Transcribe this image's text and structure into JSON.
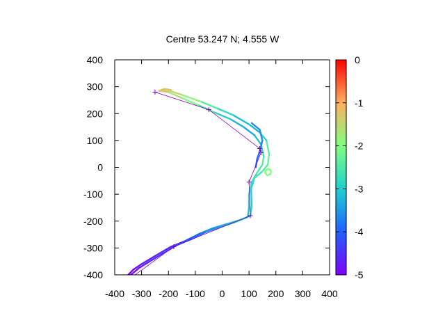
{
  "chart_data": {
    "type": "line",
    "title": "Centre 53.247 N; 4.555  W",
    "xlabel": "",
    "ylabel": "",
    "xlim": [
      -400,
      400
    ],
    "ylim": [
      -400,
      400
    ],
    "x_ticks": [
      -400,
      -300,
      -200,
      -100,
      0,
      100,
      200,
      300,
      400
    ],
    "y_ticks": [
      -400,
      -300,
      -200,
      -100,
      0,
      100,
      200,
      300,
      400
    ],
    "grid": false,
    "colorbar": {
      "range": [
        -5,
        0
      ],
      "ticks": [
        0,
        -1,
        -2,
        -3,
        -4,
        -5
      ],
      "palette": "rainbow"
    },
    "series": [
      {
        "values_note": "",
        "type": "track-outer",
        "points": [
          [
            -355,
            -405,
            -5.0
          ],
          [
            -330,
            -380,
            -4.9
          ],
          [
            -300,
            -360,
            -4.8
          ],
          [
            -250,
            -330,
            -4.6
          ],
          [
            -190,
            -295,
            -4.5
          ],
          [
            -140,
            -275,
            -4.2
          ],
          [
            -80,
            -245,
            -3.8
          ],
          [
            -30,
            -225,
            -3.5
          ],
          [
            20,
            -210,
            -3.3
          ],
          [
            70,
            -195,
            -3.1
          ],
          [
            105,
            -180,
            -3.0
          ],
          [
            110,
            -140,
            -3.0
          ],
          [
            108,
            -80,
            -2.9
          ],
          [
            120,
            -40,
            -2.7
          ],
          [
            150,
            -15,
            -2.5
          ],
          [
            170,
            10,
            -2.3
          ],
          [
            175,
            50,
            -2.2
          ],
          [
            165,
            100,
            -2.6
          ],
          [
            140,
            130,
            -3.2
          ],
          [
            100,
            160,
            -3.3
          ],
          [
            40,
            195,
            -3.0
          ],
          [
            -20,
            220,
            -2.6
          ],
          [
            -80,
            245,
            -2.2
          ],
          [
            -150,
            270,
            -1.6
          ],
          [
            -205,
            288,
            -1.4
          ],
          [
            -230,
            285,
            -1.3
          ]
        ]
      },
      {
        "type": "track-inner",
        "points": [
          [
            -340,
            -400,
            -5.0
          ],
          [
            -310,
            -375,
            -4.8
          ],
          [
            -270,
            -350,
            -4.6
          ],
          [
            -220,
            -320,
            -4.4
          ],
          [
            -170,
            -290,
            -4.3
          ],
          [
            -110,
            -265,
            -4.0
          ],
          [
            -60,
            -240,
            -3.7
          ],
          [
            0,
            -220,
            -3.4
          ],
          [
            50,
            -203,
            -3.2
          ],
          [
            95,
            -185,
            -3.0
          ],
          [
            100,
            -150,
            -3.0
          ],
          [
            100,
            -100,
            -2.9
          ],
          [
            110,
            -55,
            -2.7
          ],
          [
            130,
            -20,
            -2.6
          ],
          [
            150,
            10,
            -2.4
          ],
          [
            155,
            40,
            -2.4
          ],
          [
            145,
            85,
            -2.9
          ],
          [
            120,
            120,
            -3.4
          ],
          [
            80,
            150,
            -3.4
          ],
          [
            30,
            180,
            -3.1
          ],
          [
            -30,
            205,
            -2.8
          ],
          [
            -90,
            232,
            -2.3
          ],
          [
            -150,
            258,
            -1.8
          ],
          [
            -200,
            280,
            -1.4
          ],
          [
            -235,
            285,
            -1.2
          ],
          [
            -215,
            292,
            -1.2
          ],
          [
            -190,
            288,
            -1.3
          ]
        ]
      },
      {
        "type": "track-blue-arm",
        "points": [
          [
            125,
            0,
            -4.1
          ],
          [
            130,
            30,
            -4.0
          ],
          [
            140,
            60,
            -3.9
          ],
          [
            150,
            100,
            -3.6
          ],
          [
            140,
            140,
            -3.6
          ],
          [
            110,
            165,
            -3.5
          ]
        ]
      },
      {
        "type": "loop",
        "points": [
          [
            160,
            -20,
            -2.0
          ],
          [
            168,
            -30,
            -2.0
          ],
          [
            180,
            -25,
            -2.0
          ],
          [
            182,
            -12,
            -2.0
          ],
          [
            172,
            -5,
            -2.0
          ],
          [
            160,
            -12,
            -2.0
          ],
          [
            160,
            -20,
            -2.0
          ]
        ]
      },
      {
        "type": "waypoint-track",
        "points": [
          [
            -250,
            280
          ],
          [
            -50,
            215
          ],
          [
            140,
            70
          ],
          [
            145,
            55
          ],
          [
            100,
            -55
          ],
          [
            105,
            -180
          ],
          [
            -180,
            -295
          ],
          [
            -345,
            -415
          ]
        ]
      }
    ]
  }
}
